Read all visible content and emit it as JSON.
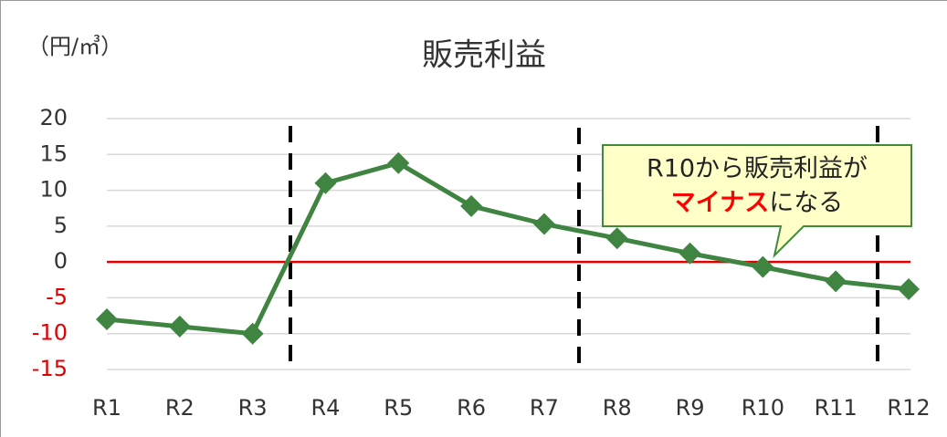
{
  "chart_data": {
    "type": "line",
    "title": "販売利益",
    "y_label": "（円/㎥）",
    "categories": [
      "R1",
      "R2",
      "R3",
      "R4",
      "R5",
      "R6",
      "R7",
      "R8",
      "R9",
      "R10",
      "R11",
      "R12"
    ],
    "series": [
      {
        "name": "販売利益",
        "color": "#3f8440",
        "values": [
          -8,
          -9,
          -10,
          11,
          13.8,
          7.8,
          5.3,
          3.3,
          1.2,
          -0.7,
          -2.7,
          -3.8
        ]
      }
    ],
    "ylim": [
      -15,
      20
    ],
    "yticks": [
      -15,
      -10,
      -5,
      0,
      5,
      10,
      15,
      20
    ],
    "grid": true,
    "zero_line_color": "#e00000",
    "negative_tick_color": "#e00000",
    "annotation": {
      "line1": "R10から販売利益が",
      "highlight": "マイナス",
      "rest": "になる",
      "highlight_color": "#ff0000"
    }
  }
}
